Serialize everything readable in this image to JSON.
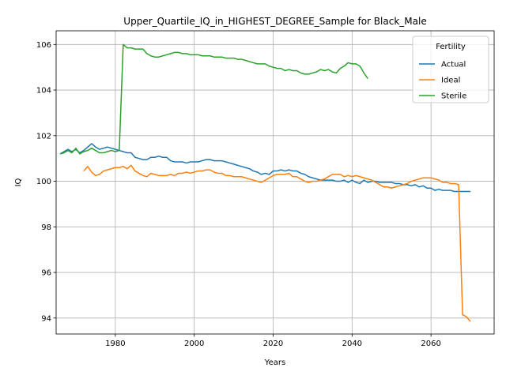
{
  "chart_data": {
    "type": "line",
    "title": "Upper_Quartile_IQ_in_HIGHEST_DEGREE_Sample for Black_Male",
    "xlabel": "Years",
    "ylabel": "IQ",
    "xlim": [
      1965,
      2076
    ],
    "ylim": [
      93.3,
      106.6
    ],
    "xticks": [
      1980,
      2000,
      2020,
      2040,
      2060
    ],
    "yticks": [
      94,
      96,
      98,
      100,
      102,
      104,
      106
    ],
    "grid": true,
    "legend": {
      "title": "Fertility",
      "position": "top-right"
    },
    "series": [
      {
        "name": "Actual",
        "color": "#1f77b4",
        "points": [
          [
            1966,
            101.2
          ],
          [
            1967,
            101.3
          ],
          [
            1968,
            101.4
          ],
          [
            1969,
            101.3
          ],
          [
            1970,
            101.4
          ],
          [
            1971,
            101.25
          ],
          [
            1972,
            101.35
          ],
          [
            1973,
            101.5
          ],
          [
            1974,
            101.65
          ],
          [
            1975,
            101.5
          ],
          [
            1976,
            101.4
          ],
          [
            1977,
            101.45
          ],
          [
            1978,
            101.5
          ],
          [
            1979,
            101.45
          ],
          [
            1980,
            101.4
          ],
          [
            1981,
            101.35
          ],
          [
            1982,
            101.3
          ],
          [
            1983,
            101.25
          ],
          [
            1984,
            101.25
          ],
          [
            1985,
            101.05
          ],
          [
            1986,
            101.0
          ],
          [
            1987,
            100.95
          ],
          [
            1988,
            100.95
          ],
          [
            1989,
            101.05
          ],
          [
            1990,
            101.05
          ],
          [
            1991,
            101.1
          ],
          [
            1992,
            101.05
          ],
          [
            1993,
            101.05
          ],
          [
            1994,
            100.9
          ],
          [
            1995,
            100.85
          ],
          [
            1996,
            100.85
          ],
          [
            1997,
            100.85
          ],
          [
            1998,
            100.8
          ],
          [
            1999,
            100.85
          ],
          [
            2000,
            100.85
          ],
          [
            2001,
            100.85
          ],
          [
            2002,
            100.9
          ],
          [
            2003,
            100.95
          ],
          [
            2004,
            100.95
          ],
          [
            2005,
            100.9
          ],
          [
            2006,
            100.9
          ],
          [
            2007,
            100.9
          ],
          [
            2008,
            100.85
          ],
          [
            2009,
            100.8
          ],
          [
            2010,
            100.75
          ],
          [
            2011,
            100.7
          ],
          [
            2012,
            100.65
          ],
          [
            2013,
            100.6
          ],
          [
            2014,
            100.55
          ],
          [
            2015,
            100.45
          ],
          [
            2016,
            100.4
          ],
          [
            2017,
            100.3
          ],
          [
            2018,
            100.35
          ],
          [
            2019,
            100.3
          ],
          [
            2020,
            100.45
          ],
          [
            2021,
            100.45
          ],
          [
            2022,
            100.5
          ],
          [
            2023,
            100.45
          ],
          [
            2024,
            100.5
          ],
          [
            2025,
            100.45
          ],
          [
            2026,
            100.45
          ],
          [
            2027,
            100.35
          ],
          [
            2028,
            100.3
          ],
          [
            2029,
            100.2
          ],
          [
            2030,
            100.15
          ],
          [
            2031,
            100.1
          ],
          [
            2032,
            100.05
          ],
          [
            2033,
            100.05
          ],
          [
            2034,
            100.05
          ],
          [
            2035,
            100.05
          ],
          [
            2036,
            100.0
          ],
          [
            2037,
            100.0
          ],
          [
            2038,
            100.05
          ],
          [
            2039,
            99.95
          ],
          [
            2040,
            100.05
          ],
          [
            2041,
            99.95
          ],
          [
            2042,
            99.9
          ],
          [
            2043,
            100.05
          ],
          [
            2044,
            99.95
          ],
          [
            2045,
            100.0
          ],
          [
            2046,
            100.0
          ],
          [
            2047,
            99.95
          ],
          [
            2048,
            99.95
          ],
          [
            2049,
            99.95
          ],
          [
            2050,
            99.95
          ],
          [
            2051,
            99.9
          ],
          [
            2052,
            99.9
          ],
          [
            2053,
            99.85
          ],
          [
            2054,
            99.85
          ],
          [
            2055,
            99.8
          ],
          [
            2056,
            99.85
          ],
          [
            2057,
            99.75
          ],
          [
            2058,
            99.8
          ],
          [
            2059,
            99.7
          ],
          [
            2060,
            99.7
          ],
          [
            2061,
            99.6
          ],
          [
            2062,
            99.65
          ],
          [
            2063,
            99.6
          ],
          [
            2064,
            99.6
          ],
          [
            2065,
            99.6
          ],
          [
            2066,
            99.55
          ],
          [
            2067,
            99.55
          ],
          [
            2068,
            99.55
          ],
          [
            2069,
            99.55
          ],
          [
            2070,
            99.55
          ]
        ]
      },
      {
        "name": "Ideal",
        "color": "#ff7f0e",
        "points": [
          [
            1972,
            100.45
          ],
          [
            1973,
            100.65
          ],
          [
            1974,
            100.4
          ],
          [
            1975,
            100.25
          ],
          [
            1976,
            100.3
          ],
          [
            1977,
            100.45
          ],
          [
            1978,
            100.5
          ],
          [
            1979,
            100.55
          ],
          [
            1980,
            100.6
          ],
          [
            1981,
            100.6
          ],
          [
            1982,
            100.65
          ],
          [
            1983,
            100.55
          ],
          [
            1984,
            100.7
          ],
          [
            1985,
            100.45
          ],
          [
            1986,
            100.35
          ],
          [
            1987,
            100.25
          ],
          [
            1988,
            100.2
          ],
          [
            1989,
            100.35
          ],
          [
            1990,
            100.3
          ],
          [
            1991,
            100.25
          ],
          [
            1992,
            100.25
          ],
          [
            1993,
            100.25
          ],
          [
            1994,
            100.3
          ],
          [
            1995,
            100.25
          ],
          [
            1996,
            100.35
          ],
          [
            1997,
            100.35
          ],
          [
            1998,
            100.4
          ],
          [
            1999,
            100.35
          ],
          [
            2000,
            100.4
          ],
          [
            2001,
            100.45
          ],
          [
            2002,
            100.45
          ],
          [
            2003,
            100.5
          ],
          [
            2004,
            100.5
          ],
          [
            2005,
            100.4
          ],
          [
            2006,
            100.35
          ],
          [
            2007,
            100.35
          ],
          [
            2008,
            100.25
          ],
          [
            2009,
            100.25
          ],
          [
            2010,
            100.2
          ],
          [
            2011,
            100.2
          ],
          [
            2012,
            100.2
          ],
          [
            2013,
            100.15
          ],
          [
            2014,
            100.1
          ],
          [
            2015,
            100.05
          ],
          [
            2016,
            100.0
          ],
          [
            2017,
            99.95
          ],
          [
            2018,
            100.05
          ],
          [
            2019,
            100.15
          ],
          [
            2020,
            100.25
          ],
          [
            2021,
            100.3
          ],
          [
            2022,
            100.3
          ],
          [
            2023,
            100.3
          ],
          [
            2024,
            100.35
          ],
          [
            2025,
            100.2
          ],
          [
            2026,
            100.2
          ],
          [
            2027,
            100.1
          ],
          [
            2028,
            100.0
          ],
          [
            2029,
            99.95
          ],
          [
            2030,
            100.0
          ],
          [
            2031,
            100.0
          ],
          [
            2032,
            100.05
          ],
          [
            2033,
            100.1
          ],
          [
            2034,
            100.2
          ],
          [
            2035,
            100.3
          ],
          [
            2036,
            100.3
          ],
          [
            2037,
            100.3
          ],
          [
            2038,
            100.2
          ],
          [
            2039,
            100.25
          ],
          [
            2040,
            100.2
          ],
          [
            2041,
            100.25
          ],
          [
            2042,
            100.2
          ],
          [
            2043,
            100.15
          ],
          [
            2044,
            100.1
          ],
          [
            2045,
            100.05
          ],
          [
            2046,
            99.95
          ],
          [
            2047,
            99.85
          ],
          [
            2048,
            99.75
          ],
          [
            2049,
            99.75
          ],
          [
            2050,
            99.7
          ],
          [
            2051,
            99.75
          ],
          [
            2052,
            99.8
          ],
          [
            2053,
            99.85
          ],
          [
            2054,
            99.9
          ],
          [
            2055,
            100.0
          ],
          [
            2056,
            100.05
          ],
          [
            2057,
            100.1
          ],
          [
            2058,
            100.15
          ],
          [
            2059,
            100.15
          ],
          [
            2060,
            100.15
          ],
          [
            2061,
            100.1
          ],
          [
            2062,
            100.05
          ],
          [
            2063,
            99.95
          ],
          [
            2064,
            99.95
          ],
          [
            2065,
            99.9
          ],
          [
            2066,
            99.9
          ],
          [
            2067,
            99.85
          ],
          [
            2068,
            94.15
          ],
          [
            2069,
            94.05
          ],
          [
            2070,
            93.85
          ]
        ]
      },
      {
        "name": "Sterile",
        "color": "#2ca02c",
        "points": [
          [
            1966,
            101.2
          ],
          [
            1967,
            101.25
          ],
          [
            1968,
            101.35
          ],
          [
            1969,
            101.25
          ],
          [
            1970,
            101.45
          ],
          [
            1971,
            101.2
          ],
          [
            1972,
            101.3
          ],
          [
            1973,
            101.35
          ],
          [
            1974,
            101.45
          ],
          [
            1975,
            101.35
          ],
          [
            1976,
            101.25
          ],
          [
            1977,
            101.25
          ],
          [
            1978,
            101.3
          ],
          [
            1979,
            101.35
          ],
          [
            1980,
            101.3
          ],
          [
            1981,
            101.35
          ],
          [
            1982,
            106.0
          ],
          [
            1983,
            105.85
          ],
          [
            1984,
            105.85
          ],
          [
            1985,
            105.8
          ],
          [
            1986,
            105.8
          ],
          [
            1987,
            105.8
          ],
          [
            1988,
            105.6
          ],
          [
            1989,
            105.5
          ],
          [
            1990,
            105.45
          ],
          [
            1991,
            105.45
          ],
          [
            1992,
            105.5
          ],
          [
            1993,
            105.55
          ],
          [
            1994,
            105.6
          ],
          [
            1995,
            105.65
          ],
          [
            1996,
            105.65
          ],
          [
            1997,
            105.6
          ],
          [
            1998,
            105.6
          ],
          [
            1999,
            105.55
          ],
          [
            2000,
            105.55
          ],
          [
            2001,
            105.55
          ],
          [
            2002,
            105.5
          ],
          [
            2003,
            105.5
          ],
          [
            2004,
            105.5
          ],
          [
            2005,
            105.45
          ],
          [
            2006,
            105.45
          ],
          [
            2007,
            105.45
          ],
          [
            2008,
            105.4
          ],
          [
            2009,
            105.4
          ],
          [
            2010,
            105.4
          ],
          [
            2011,
            105.35
          ],
          [
            2012,
            105.35
          ],
          [
            2013,
            105.3
          ],
          [
            2014,
            105.25
          ],
          [
            2015,
            105.2
          ],
          [
            2016,
            105.15
          ],
          [
            2017,
            105.15
          ],
          [
            2018,
            105.15
          ],
          [
            2019,
            105.05
          ],
          [
            2020,
            105.0
          ],
          [
            2021,
            104.95
          ],
          [
            2022,
            104.95
          ],
          [
            2023,
            104.85
          ],
          [
            2024,
            104.9
          ],
          [
            2025,
            104.85
          ],
          [
            2026,
            104.85
          ],
          [
            2027,
            104.75
          ],
          [
            2028,
            104.7
          ],
          [
            2029,
            104.7
          ],
          [
            2030,
            104.75
          ],
          [
            2031,
            104.8
          ],
          [
            2032,
            104.9
          ],
          [
            2033,
            104.85
          ],
          [
            2034,
            104.9
          ],
          [
            2035,
            104.8
          ],
          [
            2036,
            104.75
          ],
          [
            2037,
            104.95
          ],
          [
            2038,
            105.05
          ],
          [
            2039,
            105.2
          ],
          [
            2040,
            105.15
          ],
          [
            2041,
            105.15
          ],
          [
            2042,
            105.05
          ],
          [
            2043,
            104.75
          ],
          [
            2044,
            104.5
          ]
        ]
      }
    ]
  }
}
